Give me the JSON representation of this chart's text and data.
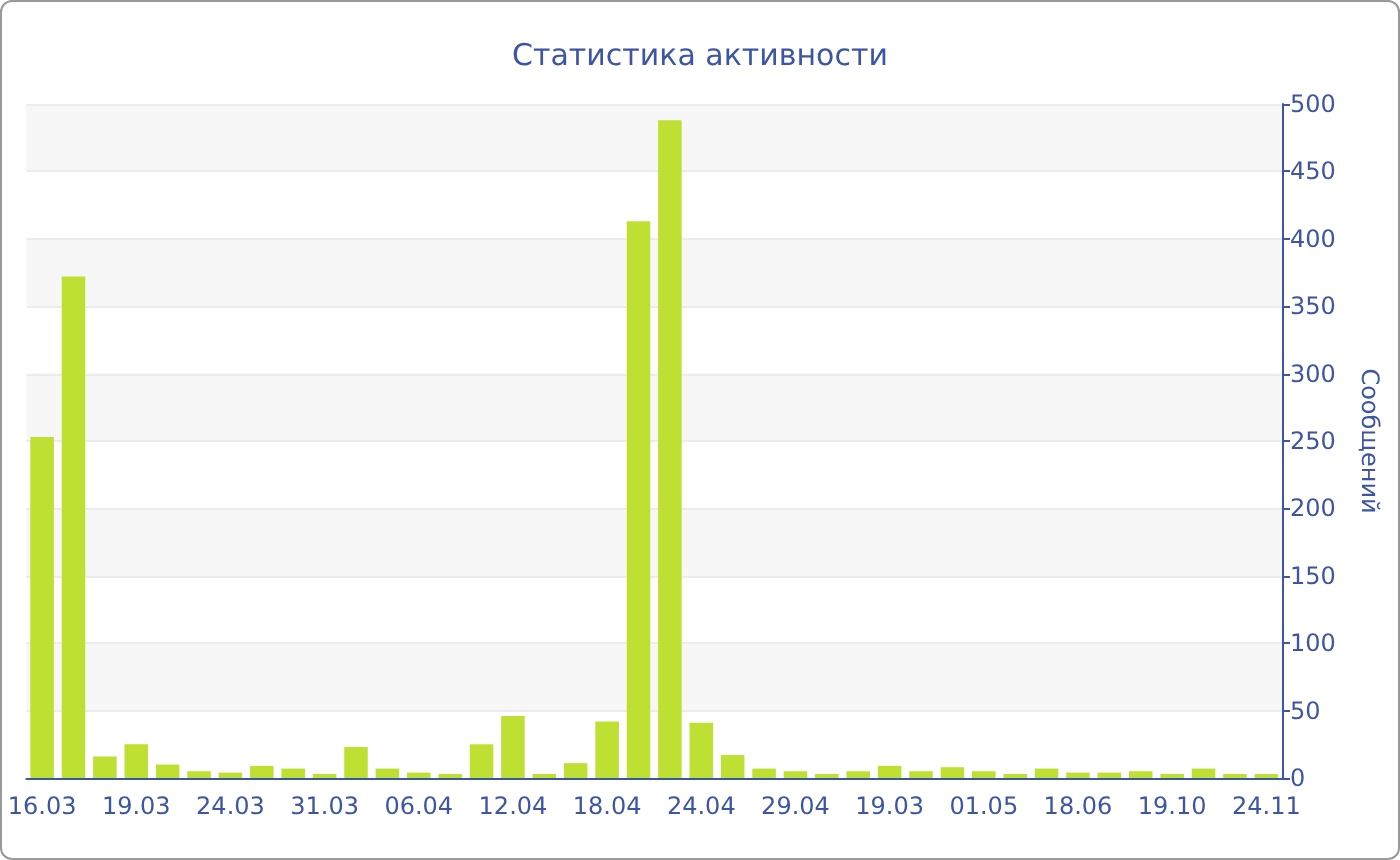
{
  "chart_data": {
    "type": "bar",
    "title": "Статистика активности",
    "ylabel": "Сообщений",
    "categories": [
      "16.03",
      null,
      null,
      "19.03",
      null,
      null,
      "24.03",
      null,
      null,
      "31.03",
      null,
      null,
      "06.04",
      null,
      null,
      "12.04",
      null,
      null,
      "18.04",
      null,
      null,
      "24.04",
      null,
      null,
      "29.04",
      null,
      null,
      "19.03",
      null,
      null,
      "01.05",
      null,
      null,
      "18.06",
      null,
      null,
      "19.10",
      null,
      null,
      "24.11"
    ],
    "values": [
      253,
      372,
      16,
      25,
      10,
      5,
      4,
      9,
      7,
      3,
      23,
      7,
      4,
      3,
      25,
      46,
      3,
      11,
      42,
      413,
      488,
      41,
      17,
      7,
      5,
      3,
      5,
      9,
      5,
      8,
      5,
      3,
      7,
      4,
      4,
      5,
      3,
      7,
      3,
      3
    ],
    "color": "#bde033",
    "ylim": [
      0,
      500
    ],
    "yticks": [
      0,
      50,
      100,
      150,
      200,
      250,
      300,
      350,
      400,
      450,
      500
    ],
    "grid": "y"
  }
}
